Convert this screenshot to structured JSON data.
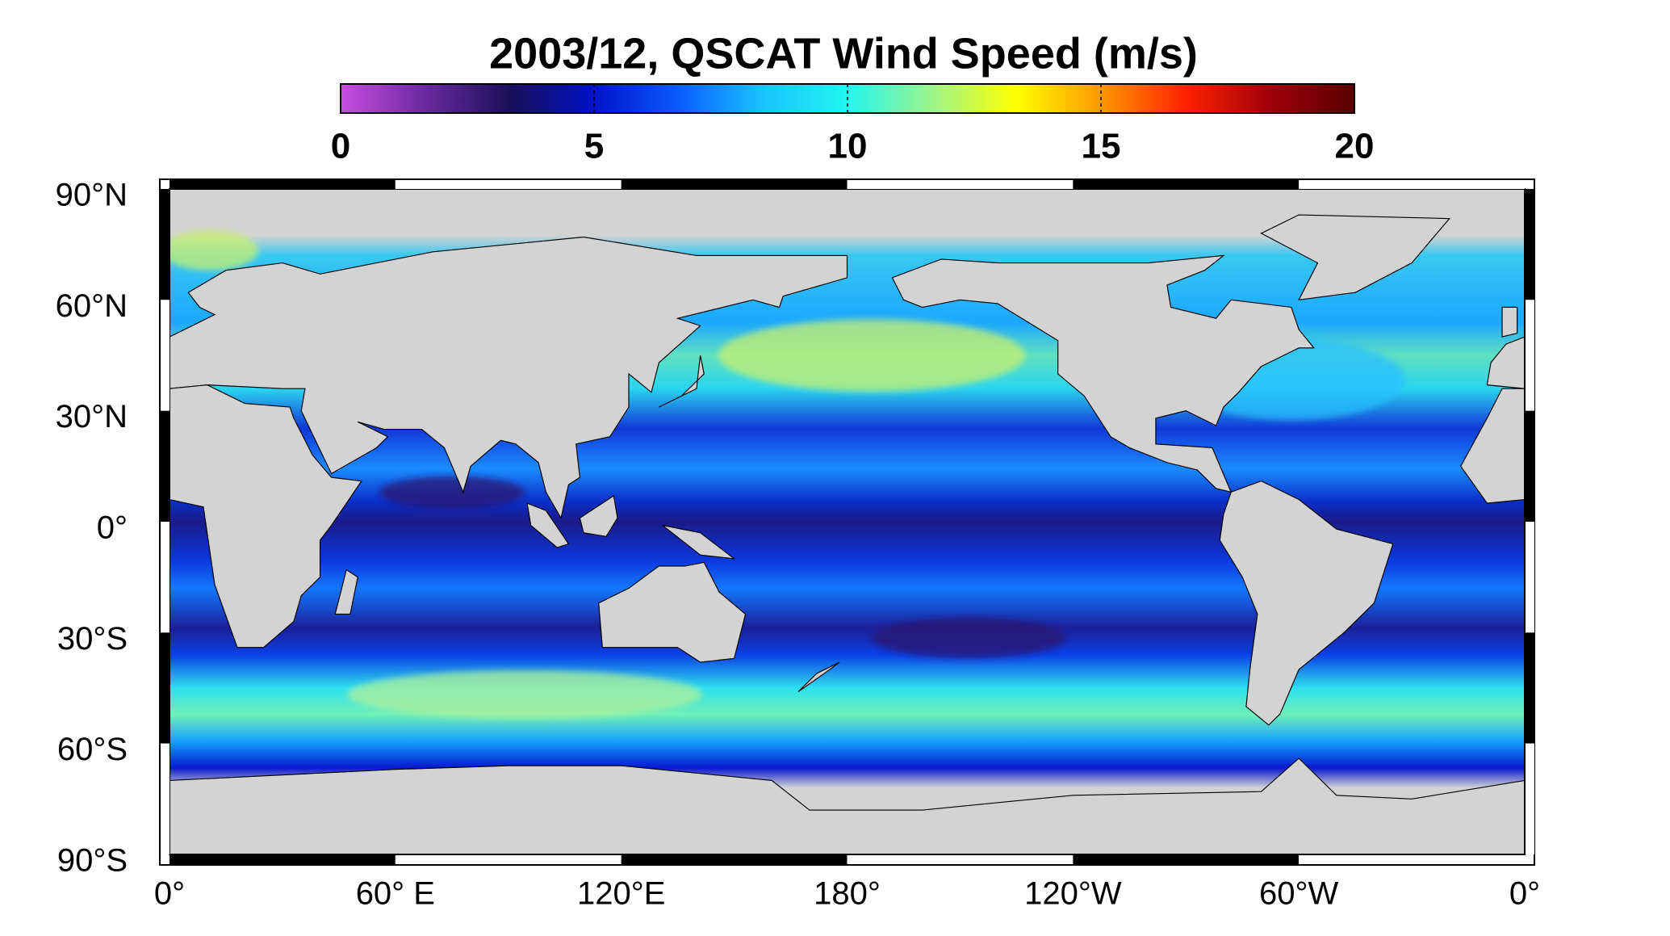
{
  "title": "2003/12,  QSCAT Wind Speed (m/s)",
  "colorbar": {
    "lim": [
      0,
      20
    ],
    "ticks": [
      0,
      5,
      10,
      15,
      20
    ],
    "colors": [
      "#c94ee0",
      "#6a2aa0",
      "#1a0f5a",
      "#0012c8",
      "#0a5cff",
      "#19c4ff",
      "#22f5f0",
      "#9ef58a",
      "#ffff00",
      "#ff9800",
      "#ff2200",
      "#a0000a",
      "#5a0000"
    ]
  },
  "map": {
    "lat_labels": [
      "90°N",
      "60°N",
      "30°N",
      "0°",
      "30°S",
      "60°S",
      "90°S"
    ],
    "lon_labels": [
      "0°",
      "60° E",
      "120°E",
      "180°",
      "120°W",
      "60°W",
      "0°"
    ]
  }
}
